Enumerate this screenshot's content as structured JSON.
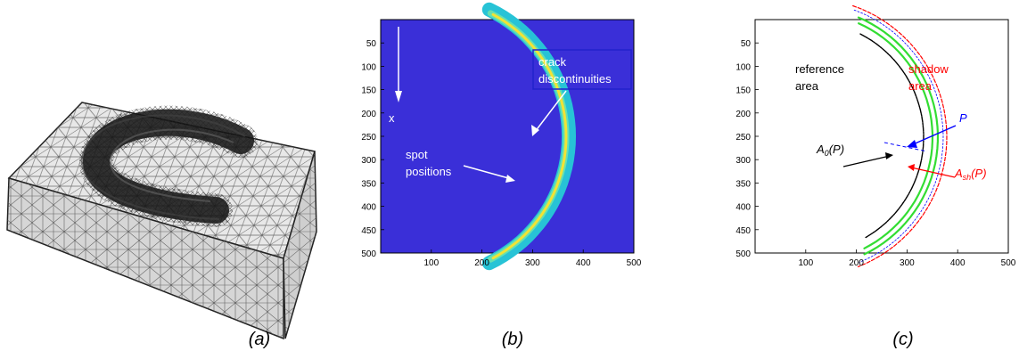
{
  "captions": {
    "a": "(a)",
    "b": "(b)",
    "c": "(c)"
  },
  "panel_b": {
    "annotations": {
      "crack_line1": "crack",
      "crack_line2": "discontinuities",
      "spot_line1": "spot",
      "spot_line2": "positions",
      "x_label": "x"
    },
    "colors": {
      "background": "#3a2fd8",
      "arc_outer": "#27c3d6",
      "arc_inner": "#f2e335",
      "frame": "#000000",
      "box": "#2222cc"
    }
  },
  "panel_c": {
    "annotations": {
      "reference_line1": "reference",
      "reference_line2": "area",
      "shadow_line1": "shadow",
      "shadow_line2": "area",
      "p_label": "P",
      "a0_label": "A",
      "a0_sub": "0",
      "a0_suffix": "(P)",
      "ash_label": "A",
      "ash_sub": "sh",
      "ash_suffix": "(P)"
    },
    "colors": {
      "reference_text": "#000000",
      "shadow_text": "#ff0000",
      "p_text": "#0000ff",
      "green": "#33dd33",
      "red": "#ff0000",
      "blue": "#0000ff",
      "black": "#000000"
    }
  },
  "chart_data": [
    {
      "type": "heatmap",
      "panel": "b",
      "xlim": [
        0,
        500
      ],
      "ylim": [
        0,
        500
      ],
      "x_ticks": [
        100,
        200,
        300,
        400,
        500
      ],
      "y_ticks": [
        50,
        100,
        150,
        200,
        250,
        300,
        350,
        400,
        450,
        500
      ],
      "y_reversed": true
    },
    {
      "type": "line",
      "panel": "c",
      "xlim": [
        0,
        500
      ],
      "ylim": [
        0,
        500
      ],
      "x_ticks": [
        100,
        200,
        300,
        400,
        500
      ],
      "y_ticks": [
        50,
        100,
        150,
        200,
        250,
        300,
        350,
        400,
        450,
        500
      ],
      "y_reversed": true
    }
  ]
}
